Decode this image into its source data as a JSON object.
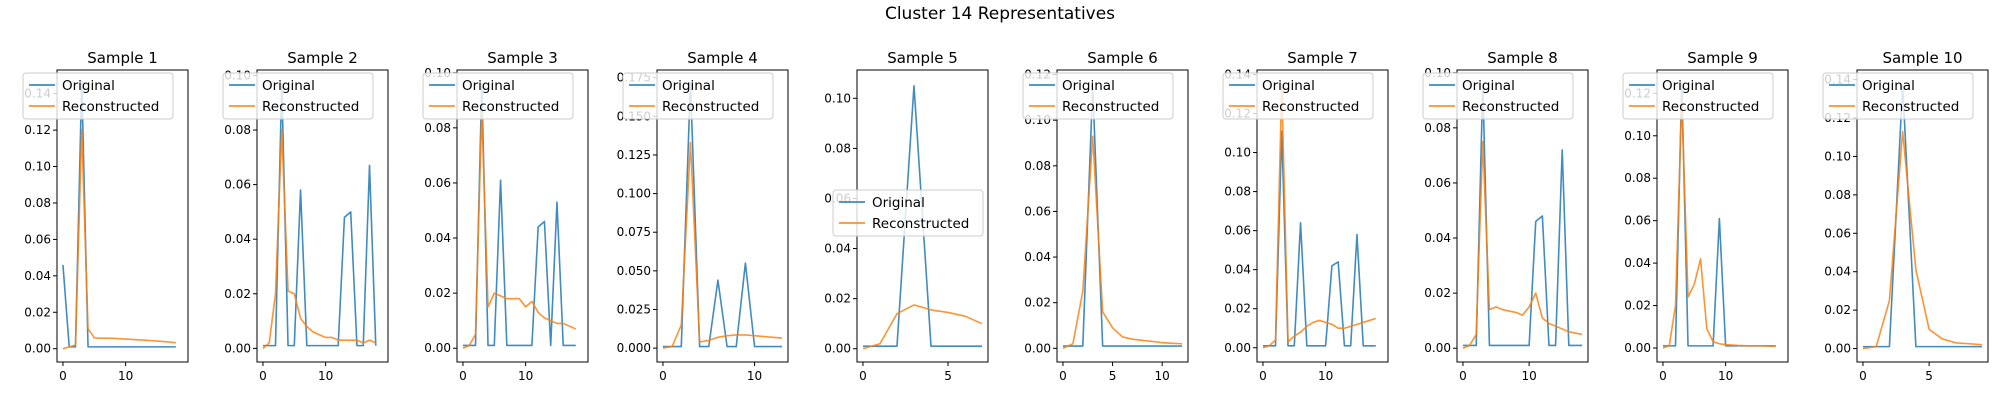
{
  "figure_title": "Cluster 14 Representatives",
  "colors": {
    "original": "#1f77b4",
    "reconstructed": "#ff7f0e",
    "axes": "#000000"
  },
  "legend_labels": [
    "Original",
    "Reconstructed"
  ],
  "chart_data": [
    {
      "type": "line",
      "title": "Sample 1",
      "xlim": [
        -0.95,
        19.95
      ],
      "ylim": [
        -0.0073,
        0.153
      ],
      "xticks": [
        0,
        10
      ],
      "yticks": [
        0.0,
        0.02,
        0.04,
        0.06,
        0.08,
        0.1,
        0.12,
        0.14
      ],
      "ytick_labels": [
        "0.00",
        "0.02",
        "0.04",
        "0.06",
        "0.08",
        "0.10",
        "0.12",
        "0.14"
      ],
      "legend": "upper left",
      "series": [
        {
          "name": "Original",
          "values": [
            0.046,
            0.001,
            0.001,
            0.147,
            0.001,
            0.001,
            0.001,
            0.001,
            0.001,
            0.001,
            0.001,
            0.001,
            0.001,
            0.001,
            0.001,
            0.001,
            0.001,
            0.001,
            0.001
          ]
        },
        {
          "name": "Reconstructed",
          "values": [
            0.0,
            0.001,
            0.002,
            0.12,
            0.011,
            0.006,
            0.0058,
            0.0058,
            0.0057,
            0.0055,
            0.0053,
            0.0051,
            0.0049,
            0.0047,
            0.0045,
            0.0042,
            0.0039,
            0.0036,
            0.0033
          ]
        }
      ]
    },
    {
      "type": "line",
      "title": "Sample 2",
      "xlim": [
        -0.95,
        19.95
      ],
      "ylim": [
        -0.005,
        0.102
      ],
      "xticks": [
        0,
        10
      ],
      "yticks": [
        0.0,
        0.02,
        0.04,
        0.06,
        0.08,
        0.1
      ],
      "ytick_labels": [
        "0.00",
        "0.02",
        "0.04",
        "0.06",
        "0.08",
        "0.10"
      ],
      "legend": "upper left",
      "series": [
        {
          "name": "Original",
          "values": [
            0.001,
            0.001,
            0.001,
            0.097,
            0.001,
            0.001,
            0.058,
            0.001,
            0.001,
            0.001,
            0.001,
            0.001,
            0.001,
            0.048,
            0.05,
            0.001,
            0.001,
            0.067,
            0.001
          ]
        },
        {
          "name": "Reconstructed",
          "values": [
            0.0,
            0.002,
            0.02,
            0.08,
            0.021,
            0.02,
            0.011,
            0.008,
            0.006,
            0.005,
            0.004,
            0.004,
            0.003,
            0.003,
            0.003,
            0.003,
            0.002,
            0.003,
            0.002
          ]
        }
      ]
    },
    {
      "type": "line",
      "title": "Sample 3",
      "xlim": [
        -0.95,
        19.95
      ],
      "ylim": [
        -0.005,
        0.101
      ],
      "xticks": [
        0,
        10
      ],
      "yticks": [
        0.0,
        0.02,
        0.04,
        0.06,
        0.08,
        0.1
      ],
      "ytick_labels": [
        "0.00",
        "0.02",
        "0.04",
        "0.06",
        "0.08",
        "0.10"
      ],
      "legend": "upper left",
      "series": [
        {
          "name": "Original",
          "values": [
            0.001,
            0.001,
            0.001,
            0.096,
            0.001,
            0.001,
            0.061,
            0.001,
            0.001,
            0.001,
            0.001,
            0.001,
            0.044,
            0.046,
            0.001,
            0.053,
            0.001,
            0.001,
            0.001
          ]
        },
        {
          "name": "Reconstructed",
          "values": [
            0.0,
            0.001,
            0.005,
            0.086,
            0.015,
            0.02,
            0.019,
            0.018,
            0.018,
            0.018,
            0.015,
            0.017,
            0.013,
            0.011,
            0.01,
            0.009,
            0.009,
            0.008,
            0.007
          ]
        }
      ]
    },
    {
      "type": "line",
      "title": "Sample 4",
      "xlim": [
        -0.65,
        13.65
      ],
      "ylim": [
        -0.009,
        0.18
      ],
      "xticks": [
        0,
        10
      ],
      "yticks": [
        0.0,
        0.025,
        0.05,
        0.075,
        0.1,
        0.125,
        0.15,
        0.175
      ],
      "ytick_labels": [
        "0.000",
        "0.025",
        "0.050",
        "0.075",
        "0.100",
        "0.125",
        "0.150",
        "0.175"
      ],
      "legend": "upper left",
      "series": [
        {
          "name": "Original",
          "values": [
            0.001,
            0.001,
            0.001,
            0.172,
            0.001,
            0.001,
            0.044,
            0.001,
            0.001,
            0.055,
            0.001,
            0.001,
            0.001,
            0.001
          ]
        },
        {
          "name": "Reconstructed",
          "values": [
            0.0,
            0.001,
            0.015,
            0.133,
            0.004,
            0.005,
            0.007,
            0.008,
            0.0085,
            0.0085,
            0.008,
            0.0075,
            0.007,
            0.0065
          ]
        }
      ]
    },
    {
      "type": "line",
      "title": "Sample 5",
      "xlim": [
        -0.35,
        7.35
      ],
      "ylim": [
        -0.0053,
        0.1113
      ],
      "xticks": [
        0,
        5
      ],
      "yticks": [
        0.0,
        0.02,
        0.04,
        0.06,
        0.08,
        0.1
      ],
      "ytick_labels": [
        "0.00",
        "0.02",
        "0.04",
        "0.06",
        "0.08",
        "0.10"
      ],
      "legend": "center left",
      "series": [
        {
          "name": "Original",
          "values": [
            0.001,
            0.001,
            0.001,
            0.105,
            0.001,
            0.001,
            0.001,
            0.001
          ]
        },
        {
          "name": "Reconstructed",
          "values": [
            0.0,
            0.002,
            0.014,
            0.0175,
            0.0155,
            0.0145,
            0.013,
            0.01
          ]
        }
      ]
    },
    {
      "type": "line",
      "title": "Sample 6",
      "xlim": [
        -0.6,
        12.6
      ],
      "ylim": [
        -0.006,
        0.122
      ],
      "xticks": [
        0,
        5,
        10
      ],
      "yticks": [
        0.0,
        0.02,
        0.04,
        0.06,
        0.08,
        0.1,
        0.12
      ],
      "ytick_labels": [
        "0.00",
        "0.02",
        "0.04",
        "0.06",
        "0.08",
        "0.10",
        "0.12"
      ],
      "legend": "upper left",
      "series": [
        {
          "name": "Original",
          "values": [
            0.001,
            0.001,
            0.001,
            0.115,
            0.001,
            0.001,
            0.001,
            0.001,
            0.001,
            0.001,
            0.001,
            0.001,
            0.001
          ]
        },
        {
          "name": "Reconstructed",
          "values": [
            0.0,
            0.002,
            0.025,
            0.093,
            0.016,
            0.009,
            0.005,
            0.004,
            0.0035,
            0.003,
            0.0025,
            0.0022,
            0.002
          ]
        }
      ]
    },
    {
      "type": "line",
      "title": "Sample 7",
      "xlim": [
        -0.95,
        19.95
      ],
      "ylim": [
        -0.0073,
        0.1423
      ],
      "xticks": [
        0,
        10
      ],
      "yticks": [
        0.0,
        0.02,
        0.04,
        0.06,
        0.08,
        0.1,
        0.12,
        0.14
      ],
      "ytick_labels": [
        "0.00",
        "0.02",
        "0.04",
        "0.06",
        "0.08",
        "0.10",
        "0.12",
        "0.14"
      ],
      "legend": "upper left",
      "series": [
        {
          "name": "Original",
          "values": [
            0.001,
            0.001,
            0.001,
            0.111,
            0.001,
            0.001,
            0.064,
            0.001,
            0.001,
            0.001,
            0.001,
            0.042,
            0.044,
            0.001,
            0.001,
            0.058,
            0.001,
            0.001,
            0.001
          ]
        },
        {
          "name": "Reconstructed",
          "values": [
            0.0,
            0.001,
            0.004,
            0.135,
            0.003,
            0.006,
            0.008,
            0.011,
            0.013,
            0.014,
            0.013,
            0.012,
            0.01,
            0.01,
            0.011,
            0.012,
            0.013,
            0.014,
            0.015
          ]
        }
      ]
    },
    {
      "type": "line",
      "title": "Sample 8",
      "xlim": [
        -0.9,
        18.9
      ],
      "ylim": [
        -0.005,
        0.101
      ],
      "xticks": [
        0,
        10
      ],
      "yticks": [
        0.0,
        0.02,
        0.04,
        0.06,
        0.08,
        0.1
      ],
      "ytick_labels": [
        "0.00",
        "0.02",
        "0.04",
        "0.06",
        "0.08",
        "0.10"
      ],
      "legend": "upper left",
      "series": [
        {
          "name": "Original",
          "values": [
            0.001,
            0.001,
            0.001,
            0.096,
            0.001,
            0.001,
            0.001,
            0.001,
            0.001,
            0.001,
            0.001,
            0.046,
            0.048,
            0.001,
            0.001,
            0.072,
            0.001,
            0.001,
            0.001
          ]
        },
        {
          "name": "Reconstructed",
          "values": [
            0.0,
            0.001,
            0.005,
            0.075,
            0.014,
            0.015,
            0.014,
            0.0135,
            0.013,
            0.012,
            0.015,
            0.02,
            0.011,
            0.009,
            0.008,
            0.007,
            0.006,
            0.0055,
            0.005
          ]
        }
      ]
    },
    {
      "type": "line",
      "title": "Sample 9",
      "xlim": [
        -0.95,
        19.95
      ],
      "ylim": [
        -0.0066,
        0.131
      ],
      "xticks": [
        0,
        10
      ],
      "yticks": [
        0.0,
        0.02,
        0.04,
        0.06,
        0.08,
        0.1,
        0.12
      ],
      "ytick_labels": [
        "0.00",
        "0.02",
        "0.04",
        "0.06",
        "0.08",
        "0.10",
        "0.12"
      ],
      "legend": "upper left",
      "series": [
        {
          "name": "Original",
          "values": [
            0.001,
            0.001,
            0.001,
            0.125,
            0.001,
            0.001,
            0.001,
            0.001,
            0.001,
            0.061,
            0.001,
            0.001,
            0.001,
            0.001,
            0.001,
            0.001,
            0.001,
            0.001,
            0.001
          ]
        },
        {
          "name": "Reconstructed",
          "values": [
            0.0,
            0.001,
            0.02,
            0.117,
            0.024,
            0.03,
            0.042,
            0.009,
            0.003,
            0.002,
            0.0016,
            0.0014,
            0.0012,
            0.0011,
            0.001,
            0.001,
            0.001,
            0.0009,
            0.0008
          ]
        }
      ]
    },
    {
      "type": "line",
      "title": "Sample 10",
      "xlim": [
        -0.45,
        9.45
      ],
      "ylim": [
        -0.007,
        0.145
      ],
      "xticks": [
        0,
        5
      ],
      "yticks": [
        0.0,
        0.02,
        0.04,
        0.06,
        0.08,
        0.1,
        0.12,
        0.14
      ],
      "ytick_labels": [
        "0.00",
        "0.02",
        "0.04",
        "0.06",
        "0.08",
        "0.10",
        "0.12",
        "0.14"
      ],
      "legend": "upper left",
      "series": [
        {
          "name": "Original",
          "values": [
            0.001,
            0.001,
            0.001,
            0.137,
            0.001,
            0.001,
            0.001,
            0.001,
            0.001,
            0.001
          ]
        },
        {
          "name": "Reconstructed",
          "values": [
            0.0,
            0.001,
            0.025,
            0.113,
            0.041,
            0.01,
            0.005,
            0.003,
            0.0025,
            0.002
          ]
        }
      ]
    }
  ]
}
